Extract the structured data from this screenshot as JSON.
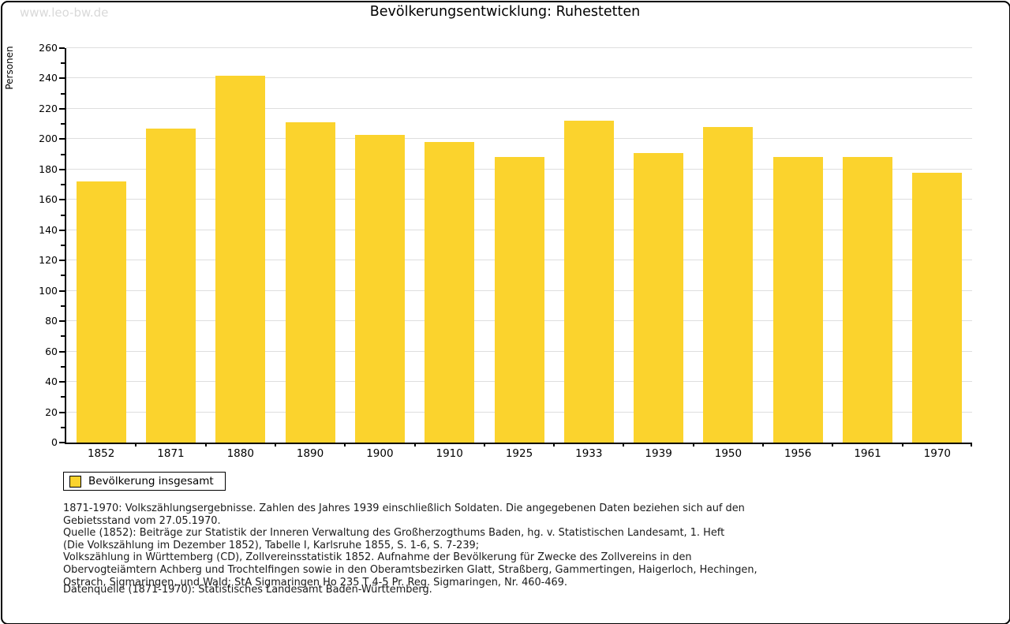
{
  "watermark": "www.leo-bw.de",
  "title": "Bevölkerungsentwicklung: Ruhestetten",
  "chart_data": {
    "type": "bar",
    "title": "Bevölkerungsentwicklung: Ruhestetten",
    "xlabel": "",
    "ylabel": "Personen",
    "categories": [
      "1852",
      "1871",
      "1880",
      "1890",
      "1900",
      "1910",
      "1925",
      "1933",
      "1939",
      "1950",
      "1956",
      "1961",
      "1970"
    ],
    "values": [
      172,
      207,
      242,
      211,
      203,
      198,
      188,
      212,
      191,
      208,
      188,
      188,
      178
    ],
    "series_name": "Bevölkerung insgesamt",
    "ylim": [
      0,
      260
    ],
    "ytick_major_step": 20,
    "ytick_minor_step": 10,
    "grid": true,
    "legend_position": "bottom-left"
  },
  "colors": {
    "bar": "#FBD32D",
    "gridline": "#DEDEDE",
    "axis": "#000000",
    "watermark": "#D9D9D9",
    "text": "#1A1A1A"
  },
  "legend": {
    "label": "Bevölkerung insgesamt",
    "swatch_color": "#FBD32D"
  },
  "footer": {
    "lines": [
      "1871-1970: Volkszählungsergebnisse. Zahlen des Jahres 1939 einschließlich Soldaten. Die angegebenen Daten beziehen sich auf den",
      "Gebietsstand vom 27.05.1970.",
      "Quelle (1852): Beiträge zur Statistik der Inneren Verwaltung des Großherzogthums Baden, hg. v. Statistischen Landesamt, 1. Heft",
      "(Die Volkszählung im Dezember 1852), Tabelle I, Karlsruhe 1855, S. 1-6, S. 7-239;",
      "Volkszählung in Württemberg (CD), Zollvereinsstatistik 1852. Aufnahme der Bevölkerung für Zwecke des Zollvereins in den",
      "Obervogteiämtern Achberg und Trochtelfingen sowie in den Oberamtsbezirken Glatt, Straßberg, Gammertingen, Haigerloch, Hechingen,",
      "Ostrach, Sigmaringen, und Wald; StA Sigmaringen Ho 235 T 4-5 Pr. Reg. Sigmaringen, Nr. 460-469."
    ],
    "datasource": "Datenquelle (1871-1970): Statistisches Landesamt Baden-Württemberg."
  }
}
